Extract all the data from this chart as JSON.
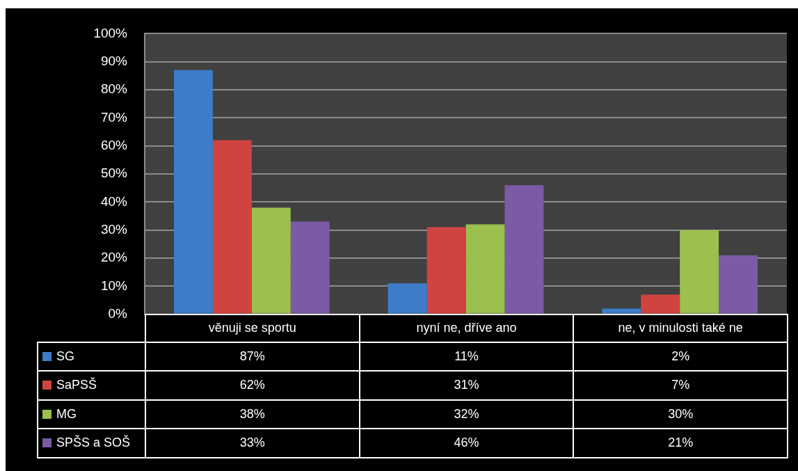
{
  "chart_data": {
    "type": "bar",
    "categories": [
      "věnuji se sportu",
      "nyní ne, dříve ano",
      "ne, v minulosti také ne"
    ],
    "series": [
      {
        "name": "SG",
        "color": "#3d7cc9",
        "values": [
          87,
          11,
          2
        ],
        "value_labels": [
          "87%",
          "11%",
          "2%"
        ]
      },
      {
        "name": "SaPSŠ",
        "color": "#d04440",
        "values": [
          62,
          31,
          7
        ],
        "value_labels": [
          "62%",
          "31%",
          "7%"
        ]
      },
      {
        "name": "MG",
        "color": "#9bc04e",
        "values": [
          38,
          32,
          30
        ],
        "value_labels": [
          "38%",
          "32%",
          "30%"
        ]
      },
      {
        "name": "SPŠS a SOŠ",
        "color": "#7b5aa6",
        "values": [
          33,
          46,
          21
        ],
        "value_labels": [
          "33%",
          "46%",
          "21%"
        ]
      }
    ],
    "ylim": [
      0,
      100
    ],
    "yticks": [
      {
        "value": 0,
        "label": "0%"
      },
      {
        "value": 10,
        "label": "10%"
      },
      {
        "value": 20,
        "label": "20%"
      },
      {
        "value": 30,
        "label": "30%"
      },
      {
        "value": 40,
        "label": "40%"
      },
      {
        "value": 50,
        "label": "50%"
      },
      {
        "value": 60,
        "label": "60%"
      },
      {
        "value": 70,
        "label": "70%"
      },
      {
        "value": 80,
        "label": "80%"
      },
      {
        "value": 90,
        "label": "90%"
      },
      {
        "value": 100,
        "label": "100%"
      }
    ],
    "grid": "y",
    "legend": "bottom"
  }
}
